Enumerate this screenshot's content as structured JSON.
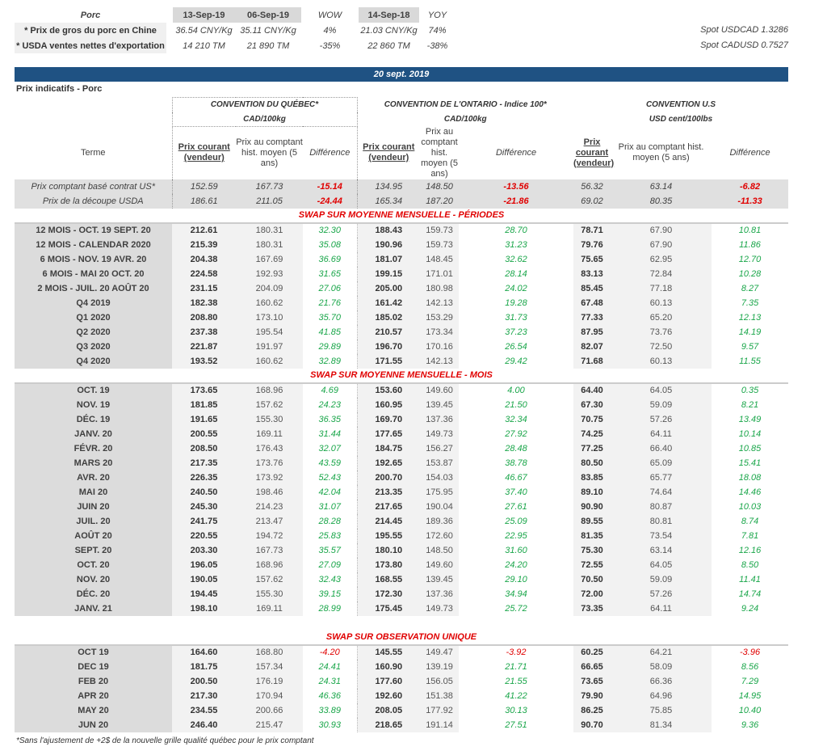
{
  "summary": {
    "headers": [
      "Porc",
      "13-Sep-19",
      "06-Sep-19",
      "WOW",
      "14-Sep-18",
      "YOY"
    ],
    "rows": [
      [
        "* Prix de gros du porc en Chine",
        "36.54 CNY/Kg",
        "35.11 CNY/Kg",
        "4%",
        "21.03 CNY/Kg",
        "74%"
      ],
      [
        "* USDA ventes nettes d'exportation",
        "14 210  TM",
        "21 890  TM",
        "-35%",
        "22 860  TM",
        "-38%"
      ]
    ],
    "spot_usdcad": "Spot USDCAD 1.3286",
    "spot_cadusd": "Spot CADUSD 0.7527"
  },
  "banner_date": "20 sept. 2019",
  "subtitle": "Prix indicatifs - Porc",
  "conventions": [
    {
      "title": "CONVENTION DU QUÉBEC*",
      "unit": "CAD/100kg"
    },
    {
      "title": "CONVENTION DE L'ONTARIO - Indice 100*",
      "unit": "CAD/100kg"
    },
    {
      "title": "CONVENTION U.S",
      "unit": "USD cent/100lbs"
    }
  ],
  "col_headers": {
    "terme": "Terme",
    "qc": [
      "Prix courant (vendeur)",
      "Prix au comptant hist. moyen (5 ans)",
      "Différence"
    ],
    "on": [
      "Prix courant (vendeur)",
      "Prix au comptant hist. moyen (5 ans)",
      "Différence"
    ],
    "us": [
      "Prix courant (vendeur)",
      "Prix au comptant hist. moyen (5 ans)",
      "Différence"
    ]
  },
  "spot_rows": [
    [
      "Prix comptant basé contrat US*",
      "152.59",
      "167.73",
      "-15.14",
      "134.95",
      "148.50",
      "-13.56",
      "56.32",
      "63.14",
      "-6.82"
    ],
    [
      "Prix de la découpe USDA",
      "186.61",
      "211.05",
      "-24.44",
      "165.34",
      "187.20",
      "-21.86",
      "69.02",
      "80.35",
      "-11.33"
    ]
  ],
  "sections": [
    {
      "title": "SWAP SUR MOYENNE MENSUELLE - PÉRIODES",
      "rows": [
        [
          "12 MOIS -  OCT. 19 SEPT. 20",
          "212.61",
          "180.31",
          "32.30",
          "188.43",
          "159.73",
          "28.70",
          "78.71",
          "67.90",
          "10.81"
        ],
        [
          "12 MOIS - CALENDAR 2020",
          "215.39",
          "180.31",
          "35.08",
          "190.96",
          "159.73",
          "31.23",
          "79.76",
          "67.90",
          "11.86"
        ],
        [
          "6 MOIS -  NOV. 19 AVR. 20",
          "204.38",
          "167.69",
          "36.69",
          "181.07",
          "148.45",
          "32.62",
          "75.65",
          "62.95",
          "12.70"
        ],
        [
          "6 MOIS -  MAI 20 OCT. 20",
          "224.58",
          "192.93",
          "31.65",
          "199.15",
          "171.01",
          "28.14",
          "83.13",
          "72.84",
          "10.28"
        ],
        [
          "2 MOIS -  JUIL. 20  AOÛT 20",
          "231.15",
          "204.09",
          "27.06",
          "205.00",
          "180.98",
          "24.02",
          "85.45",
          "77.18",
          "8.27"
        ],
        [
          "Q4 2019",
          "182.38",
          "160.62",
          "21.76",
          "161.42",
          "142.13",
          "19.28",
          "67.48",
          "60.13",
          "7.35"
        ],
        [
          "Q1 2020",
          "208.80",
          "173.10",
          "35.70",
          "185.02",
          "153.29",
          "31.73",
          "77.33",
          "65.20",
          "12.13"
        ],
        [
          "Q2 2020",
          "237.38",
          "195.54",
          "41.85",
          "210.57",
          "173.34",
          "37.23",
          "87.95",
          "73.76",
          "14.19"
        ],
        [
          "Q3 2020",
          "221.87",
          "191.97",
          "29.89",
          "196.70",
          "170.16",
          "26.54",
          "82.07",
          "72.50",
          "9.57"
        ],
        [
          "Q4 2020",
          "193.52",
          "160.62",
          "32.89",
          "171.55",
          "142.13",
          "29.42",
          "71.68",
          "60.13",
          "11.55"
        ]
      ]
    },
    {
      "title": "SWAP SUR MOYENNE MENSUELLE - MOIS",
      "rows": [
        [
          "OCT. 19",
          "173.65",
          "168.96",
          "4.69",
          "153.60",
          "149.60",
          "4.00",
          "64.40",
          "64.05",
          "0.35"
        ],
        [
          "NOV. 19",
          "181.85",
          "157.62",
          "24.23",
          "160.95",
          "139.45",
          "21.50",
          "67.30",
          "59.09",
          "8.21"
        ],
        [
          "DÉC. 19",
          "191.65",
          "155.30",
          "36.35",
          "169.70",
          "137.36",
          "32.34",
          "70.75",
          "57.26",
          "13.49"
        ],
        [
          "JANV. 20",
          "200.55",
          "169.11",
          "31.44",
          "177.65",
          "149.73",
          "27.92",
          "74.25",
          "64.11",
          "10.14"
        ],
        [
          "FÉVR. 20",
          "208.50",
          "176.43",
          "32.07",
          "184.75",
          "156.27",
          "28.48",
          "77.25",
          "66.40",
          "10.85"
        ],
        [
          "MARS 20",
          "217.35",
          "173.76",
          "43.59",
          "192.65",
          "153.87",
          "38.78",
          "80.50",
          "65.09",
          "15.41"
        ],
        [
          "AVR. 20",
          "226.35",
          "173.92",
          "52.43",
          "200.70",
          "154.03",
          "46.67",
          "83.85",
          "65.77",
          "18.08"
        ],
        [
          "MAI 20",
          "240.50",
          "198.46",
          "42.04",
          "213.35",
          "175.95",
          "37.40",
          "89.10",
          "74.64",
          "14.46"
        ],
        [
          "JUIN 20",
          "245.30",
          "214.23",
          "31.07",
          "217.65",
          "190.04",
          "27.61",
          "90.90",
          "80.87",
          "10.03"
        ],
        [
          "JUIL. 20",
          "241.75",
          "213.47",
          "28.28",
          "214.45",
          "189.36",
          "25.09",
          "89.55",
          "80.81",
          "8.74"
        ],
        [
          "AOÛT 20",
          "220.55",
          "194.72",
          "25.83",
          "195.55",
          "172.60",
          "22.95",
          "81.35",
          "73.54",
          "7.81"
        ],
        [
          "SEPT. 20",
          "203.30",
          "167.73",
          "35.57",
          "180.10",
          "148.50",
          "31.60",
          "75.30",
          "63.14",
          "12.16"
        ],
        [
          "OCT. 20",
          "196.05",
          "168.96",
          "27.09",
          "173.80",
          "149.60",
          "24.20",
          "72.55",
          "64.05",
          "8.50"
        ],
        [
          "NOV. 20",
          "190.05",
          "157.62",
          "32.43",
          "168.55",
          "139.45",
          "29.10",
          "70.50",
          "59.09",
          "11.41"
        ],
        [
          "DÉC. 20",
          "194.45",
          "155.30",
          "39.15",
          "172.30",
          "137.36",
          "34.94",
          "72.00",
          "57.26",
          "14.74"
        ],
        [
          "JANV. 21",
          "198.10",
          "169.11",
          "28.99",
          "175.45",
          "149.73",
          "25.72",
          "73.35",
          "64.11",
          "9.24"
        ]
      ]
    },
    {
      "title": "SWAP SUR OBSERVATION UNIQUE",
      "gap_before": true,
      "rows": [
        [
          "OCT 19",
          "164.60",
          "168.80",
          "-4.20",
          "145.55",
          "149.47",
          "-3.92",
          "60.25",
          "64.21",
          "-3.96"
        ],
        [
          "DEC 19",
          "181.75",
          "157.34",
          "24.41",
          "160.90",
          "139.19",
          "21.71",
          "66.65",
          "58.09",
          "8.56"
        ],
        [
          "FEB 20",
          "200.50",
          "176.19",
          "24.31",
          "177.60",
          "156.05",
          "21.55",
          "73.65",
          "66.36",
          "7.29"
        ],
        [
          "APR 20",
          "217.30",
          "170.94",
          "46.36",
          "192.60",
          "151.38",
          "41.22",
          "79.90",
          "64.96",
          "14.95"
        ],
        [
          "MAY 20",
          "234.55",
          "200.66",
          "33.89",
          "208.05",
          "177.92",
          "30.13",
          "86.25",
          "75.85",
          "10.40"
        ],
        [
          "JUN 20",
          "246.40",
          "215.47",
          "30.93",
          "218.65",
          "191.14",
          "27.51",
          "90.70",
          "81.34",
          "9.36"
        ]
      ]
    }
  ],
  "footnote": "*Sans l'ajustement de +2$ de la nouvelle grille qualité québec pour le prix comptant",
  "colors": {
    "banner": "#1f5283",
    "positive": "#1aa64a",
    "negative": "#e00000"
  }
}
